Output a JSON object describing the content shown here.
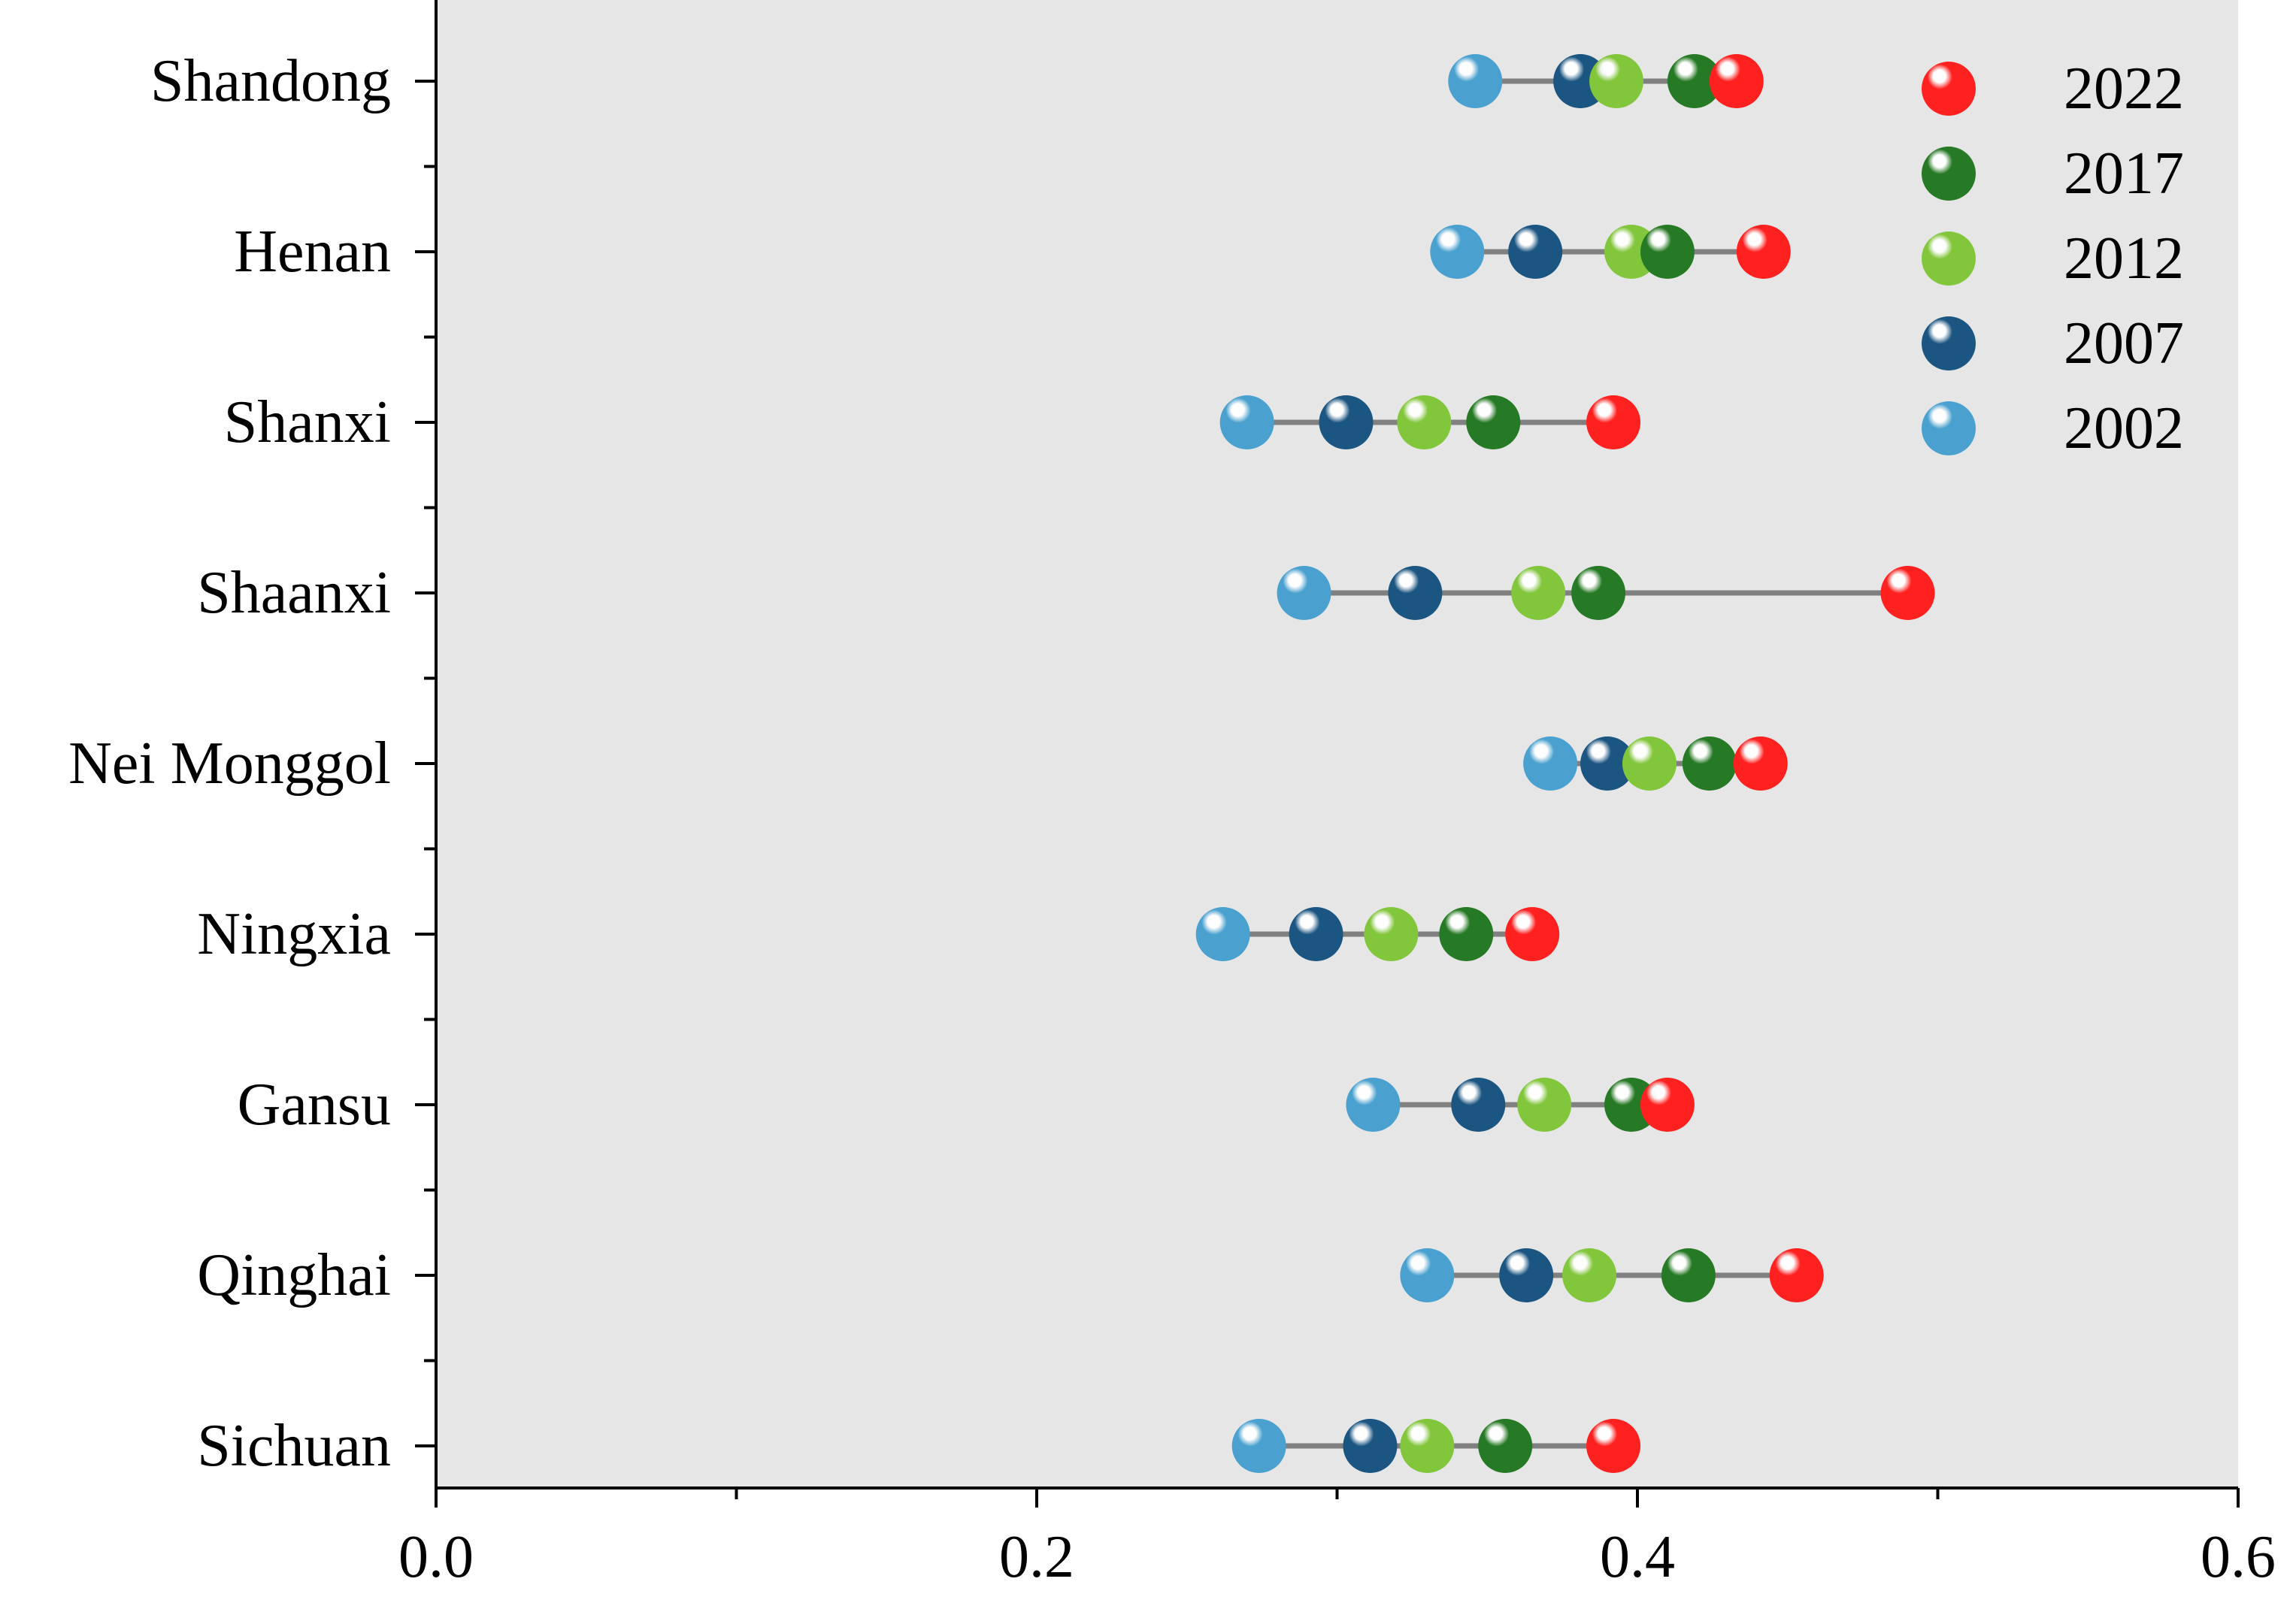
{
  "chart_data": {
    "type": "dumbbell",
    "title": "",
    "xlabel": "",
    "ylabel": "",
    "xlim": [
      0.0,
      0.6
    ],
    "x_ticks": [
      "0.0",
      "0.2",
      "0.4",
      "0.6"
    ],
    "grid": false,
    "legend_position": "top-right",
    "plot_background": "#e6e6e6",
    "connector_color": "#808080",
    "categories": [
      "Shandong",
      "Henan",
      "Shanxi",
      "Shaanxi",
      "Nei Monggol",
      "Ningxia",
      "Gansu",
      "Qinghai",
      "Sichuan"
    ],
    "series": [
      {
        "name": "2022",
        "color": "#ff2020",
        "values": [
          0.433,
          0.442,
          0.392,
          0.49,
          0.441,
          0.365,
          0.41,
          0.453,
          0.392
        ]
      },
      {
        "name": "2017",
        "color": "#277a25",
        "values": [
          0.419,
          0.41,
          0.352,
          0.387,
          0.424,
          0.343,
          0.398,
          0.417,
          0.356
        ]
      },
      {
        "name": "2012",
        "color": "#82c63c",
        "values": [
          0.393,
          0.398,
          0.329,
          0.367,
          0.404,
          0.318,
          0.369,
          0.384,
          0.33
        ]
      },
      {
        "name": "2007",
        "color": "#1b5581",
        "values": [
          0.381,
          0.366,
          0.303,
          0.326,
          0.39,
          0.293,
          0.347,
          0.363,
          0.311
        ]
      },
      {
        "name": "2002",
        "color": "#4aa1cf",
        "values": [
          0.346,
          0.34,
          0.27,
          0.289,
          0.371,
          0.262,
          0.312,
          0.33,
          0.274
        ]
      }
    ]
  }
}
